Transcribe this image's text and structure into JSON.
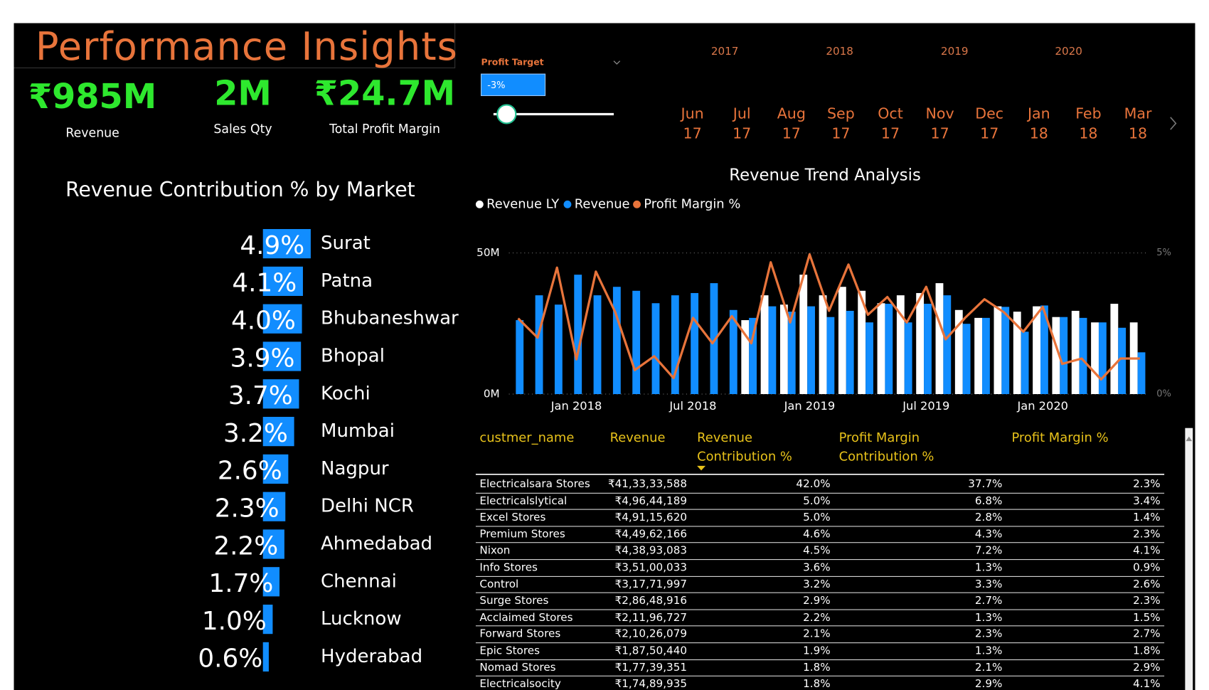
{
  "header": {
    "title": "Performance Insights"
  },
  "kpis": [
    {
      "value": "₹985M",
      "label": "Revenue"
    },
    {
      "value": "2M",
      "label": "Sales Qty"
    },
    {
      "value": "₹24.7M",
      "label": "Total Profit Margin"
    }
  ],
  "slicer": {
    "label": "Profit Target",
    "value": "-3%"
  },
  "timeline": {
    "years": [
      "2017",
      "2018",
      "2019",
      "2020"
    ],
    "months": [
      {
        "month": "Jun",
        "year": "17"
      },
      {
        "month": "Jul",
        "year": "17"
      },
      {
        "month": "Aug",
        "year": "17"
      },
      {
        "month": "Sep",
        "year": "17"
      },
      {
        "month": "Oct",
        "year": "17"
      },
      {
        "month": "Nov",
        "year": "17"
      },
      {
        "month": "Dec",
        "year": "17"
      },
      {
        "month": "Jan",
        "year": "18"
      },
      {
        "month": "Feb",
        "year": "18"
      },
      {
        "month": "Mar",
        "year": "18"
      }
    ]
  },
  "chart_data": [
    {
      "type": "barh",
      "title": "Revenue Contribution % by Market",
      "categories": [
        "Surat",
        "Patna",
        "Bhubaneshwar",
        "Bhopal",
        "Kochi",
        "Mumbai",
        "Nagpur",
        "Delhi NCR",
        "Ahmedabad",
        "Chennai",
        "Lucknow",
        "Hyderabad"
      ],
      "values": [
        4.9,
        4.1,
        4.0,
        3.9,
        3.7,
        3.2,
        2.6,
        2.3,
        2.2,
        1.7,
        1.0,
        0.6
      ],
      "value_labels": [
        "4.9%",
        "4.1%",
        "4.0%",
        "3.9%",
        "3.7%",
        "3.2%",
        "2.6%",
        "2.3%",
        "2.2%",
        "1.7%",
        "1.0%",
        "0.6%"
      ],
      "color": "#118dff"
    },
    {
      "type": "combo",
      "title": "Revenue Trend Analysis",
      "categories": [
        null,
        null,
        null,
        "Jan 2018",
        null,
        null,
        null,
        null,
        null,
        "Jul 2018",
        null,
        null,
        null,
        null,
        null,
        "Jan 2019",
        null,
        null,
        null,
        null,
        null,
        "Jul 2019",
        null,
        null,
        null,
        null,
        null,
        "Jan 2020",
        null,
        null,
        null,
        null,
        null
      ],
      "series": [
        {
          "name": "Revenue LY",
          "color": "#ffffff",
          "kind": "bar",
          "values": [
            null,
            null,
            null,
            null,
            null,
            null,
            null,
            null,
            null,
            null,
            null,
            null,
            26.2,
            35,
            31.7,
            42.3,
            35,
            38,
            36.6,
            32.2,
            35,
            35.8,
            39.3,
            29.8,
            27,
            31.1,
            29.2,
            31.1,
            27.3,
            29.5,
            25.4,
            32,
            25.4
          ]
        },
        {
          "name": "Revenue",
          "color": "#118dff",
          "kind": "bar",
          "values": [
            26.2,
            35,
            31.7,
            42.3,
            35,
            38,
            36.6,
            32.2,
            35,
            35.8,
            39.3,
            29.8,
            27,
            31.1,
            29.2,
            31.1,
            27.3,
            29.5,
            25.4,
            32,
            25.4,
            32,
            35,
            24.9,
            27,
            30.9,
            22.1,
            31.4,
            27.3,
            27,
            25.4,
            23.5,
            14.8
          ]
        },
        {
          "name": "Profit Margin %",
          "color": "#e8743b",
          "kind": "line",
          "axis": "y2",
          "values": [
            2.68,
            2.0,
            4.48,
            1.23,
            4.34,
            2.9,
            0.85,
            1.34,
            0.57,
            2.7,
            1.8,
            2.76,
            1.8,
            4.67,
            2.54,
            4.95,
            2.95,
            4.59,
            2.81,
            3.44,
            2.54,
            3.8,
            1.94,
            2.7,
            3.36,
            2.9,
            2.21,
            3.09,
            1.07,
            1.26,
            0.52,
            1.26,
            1.26
          ]
        }
      ],
      "ylim": [
        0,
        50
      ],
      "yticks": [
        {
          "value": 0,
          "label": "0M"
        },
        {
          "value": 50,
          "label": "50M"
        }
      ],
      "y2lim": [
        0,
        5
      ],
      "y2ticks": [
        {
          "value": 0,
          "label": "0%"
        },
        {
          "value": 5,
          "label": "5%"
        }
      ],
      "grid": true
    }
  ],
  "table": {
    "columns": [
      "custmer_name",
      "Revenue",
      "Revenue Contribution %",
      "Profit Margin Contribution %",
      "Profit Margin %"
    ],
    "rows": [
      [
        "Electricalsara Stores",
        "₹41,33,33,588",
        "42.0%",
        "37.7%",
        "2.3%"
      ],
      [
        "Electricalslytical",
        "₹4,96,44,189",
        "5.0%",
        "6.8%",
        "3.4%"
      ],
      [
        "Excel Stores",
        "₹4,91,15,620",
        "5.0%",
        "2.8%",
        "1.4%"
      ],
      [
        "Premium Stores",
        "₹4,49,62,166",
        "4.6%",
        "4.3%",
        "2.3%"
      ],
      [
        "Nixon",
        "₹4,38,93,083",
        "4.5%",
        "7.2%",
        "4.1%"
      ],
      [
        "Info Stores",
        "₹3,51,00,033",
        "3.6%",
        "1.3%",
        "0.9%"
      ],
      [
        "Control",
        "₹3,17,71,997",
        "3.2%",
        "3.3%",
        "2.6%"
      ],
      [
        "Surge Stores",
        "₹2,86,48,916",
        "2.9%",
        "2.7%",
        "2.3%"
      ],
      [
        "Acclaimed Stores",
        "₹2,11,96,727",
        "2.2%",
        "1.3%",
        "1.5%"
      ],
      [
        "Forward Stores",
        "₹2,10,26,079",
        "2.1%",
        "2.3%",
        "2.7%"
      ],
      [
        "Epic Stores",
        "₹1,87,50,440",
        "1.9%",
        "1.3%",
        "1.8%"
      ],
      [
        "Nomad Stores",
        "₹1,77,39,351",
        "1.8%",
        "2.1%",
        "2.9%"
      ],
      [
        "Electricalsocity",
        "₹1,74,89,935",
        "1.8%",
        "2.9%",
        "4.1%"
      ]
    ]
  }
}
